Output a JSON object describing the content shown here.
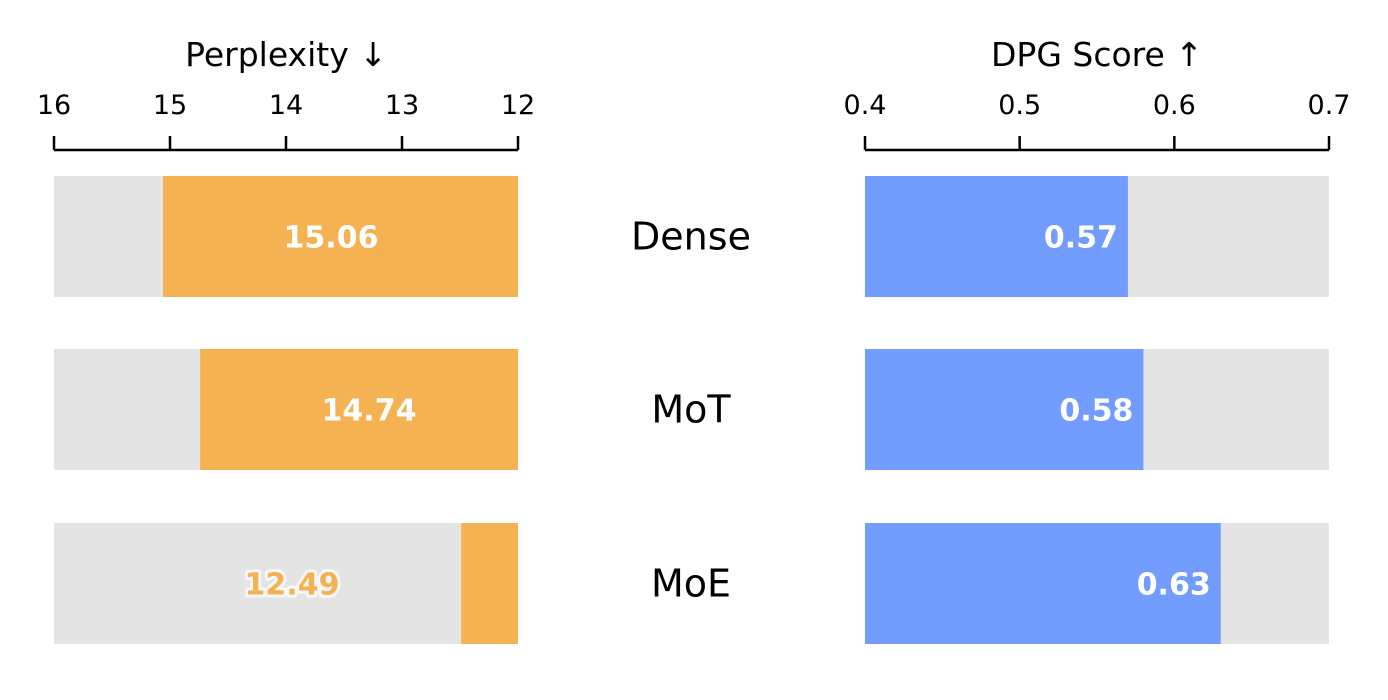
{
  "chart_data": [
    {
      "type": "bar",
      "orientation": "horizontal",
      "title": "Perplexity ↓",
      "categories": [
        "Dense",
        "MoT",
        "MoE"
      ],
      "values": [
        15.06,
        14.74,
        12.49
      ],
      "labels": [
        "15.06",
        "14.74",
        "12.49"
      ],
      "xlim": [
        16,
        12
      ],
      "xticks": [
        "16",
        "15",
        "14",
        "13",
        "12"
      ],
      "axis_reversed": true,
      "bar_color": "#F5B253",
      "background_color": "#E4E4E4",
      "grid": false
    },
    {
      "type": "bar",
      "orientation": "horizontal",
      "title": "DPG Score ↑",
      "categories": [
        "Dense",
        "MoT",
        "MoE"
      ],
      "values": [
        0.57,
        0.58,
        0.63
      ],
      "labels": [
        "0.57",
        "0.58",
        "0.63"
      ],
      "xlim": [
        0.4,
        0.7
      ],
      "xticks": [
        "0.4",
        "0.5",
        "0.6",
        "0.7"
      ],
      "bar_color": "#729CFD",
      "background_color": "#E4E4E4",
      "grid": false
    }
  ]
}
